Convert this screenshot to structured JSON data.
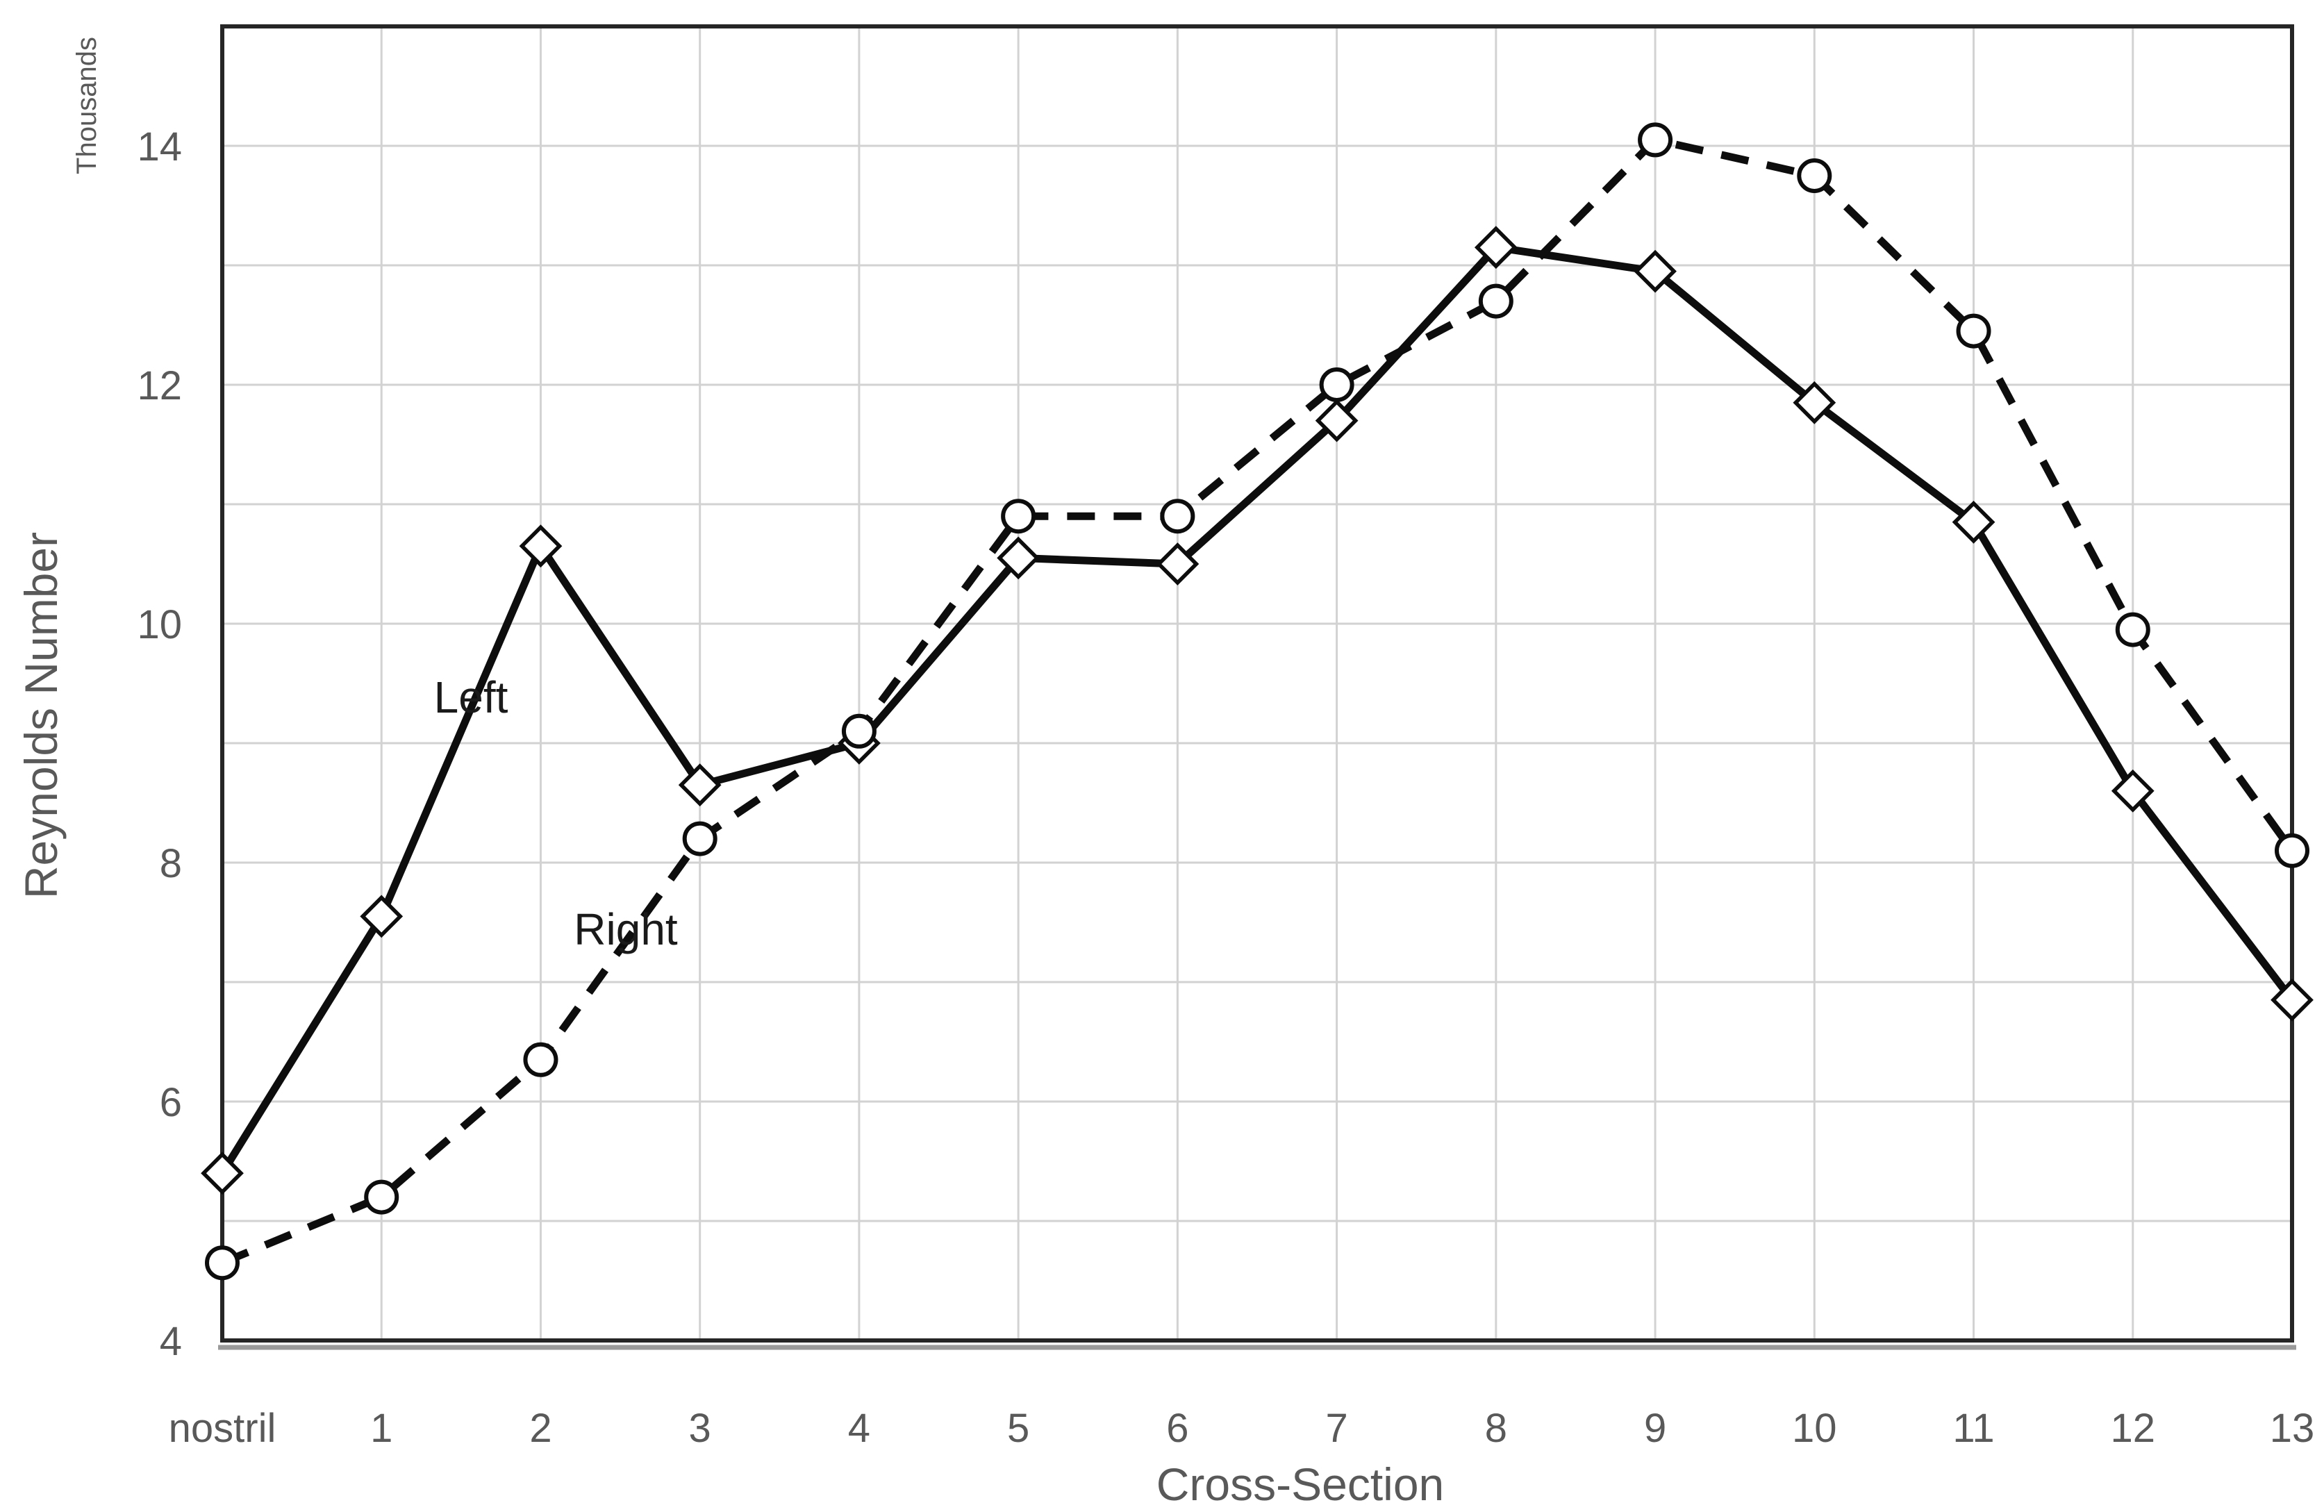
{
  "chart_data": {
    "type": "line",
    "title": "",
    "xlabel": "Cross-Section",
    "ylabel": "Reynolds Number",
    "y_units_label": "Thousands",
    "categories": [
      "nostril",
      "1",
      "2",
      "3",
      "4",
      "5",
      "6",
      "7",
      "8",
      "9",
      "10",
      "11",
      "12",
      "13"
    ],
    "series": [
      {
        "name": "Left",
        "line_style": "solid",
        "marker": "diamond",
        "values": [
          5.4,
          7.55,
          10.65,
          8.65,
          9.0,
          10.55,
          10.5,
          11.7,
          13.15,
          12.95,
          11.85,
          10.85,
          8.6,
          6.85
        ]
      },
      {
        "name": "Right",
        "line_style": "dashed",
        "marker": "circle",
        "values": [
          4.65,
          5.2,
          6.35,
          8.2,
          9.1,
          10.9,
          10.9,
          12.0,
          12.7,
          14.05,
          13.75,
          12.45,
          9.95,
          8.1
        ]
      }
    ],
    "y_tick_labels": [
      "4",
      "6",
      "8",
      "10",
      "12",
      "14"
    ],
    "y_tick_values": [
      4,
      6,
      8,
      10,
      12,
      14
    ],
    "ylim": [
      4,
      15
    ],
    "y_grid_step": 1,
    "grid": true,
    "legend_position": "inline-labels",
    "colors": {
      "series_line": "#0d0d0d",
      "marker_fill": "#ffffff",
      "gridline": "#d2d2d2",
      "plot_border": "#262626",
      "x_axis_line": "#9a9a9a",
      "axis_text": "#595959",
      "series_label_text": "#1a1a1a",
      "background": "#ffffff"
    }
  }
}
